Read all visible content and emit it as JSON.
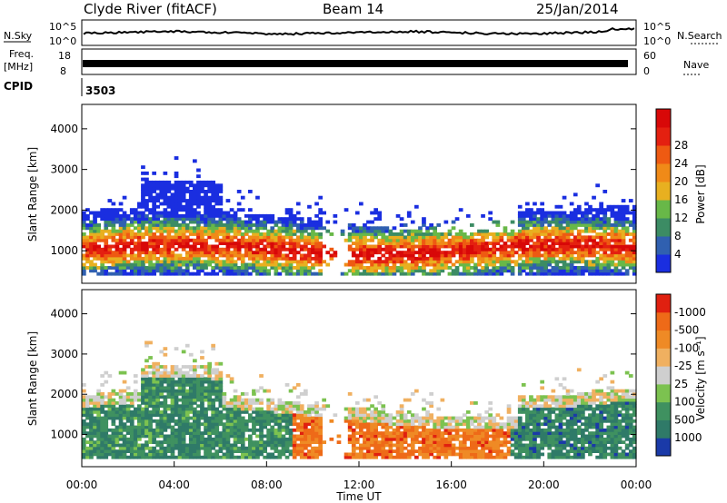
{
  "header": {
    "station": "Clyde River (fitACF)",
    "beam": "Beam 14",
    "date": "25/Jan/2014"
  },
  "strip_panels": {
    "noise": {
      "left_label": "N.Sky",
      "right_label": "N.Search",
      "left_ticks": [
        "10^5",
        "10^0"
      ],
      "right_ticks": [
        "10^5",
        "10^0"
      ]
    },
    "freq": {
      "left_label_line1": "Freq.",
      "left_label_line2": "[MHz]",
      "left_ticks": [
        "18",
        "8"
      ],
      "right_label": "Nave",
      "right_ticks": [
        "60",
        "0"
      ]
    },
    "cpid": {
      "label": "CPID",
      "value": "3503"
    }
  },
  "chart_data": [
    {
      "type": "heatmap",
      "name": "power",
      "ylabel": "Slant Range [km]",
      "yticks": [
        1000,
        2000,
        3000,
        4000
      ],
      "ylim": [
        200,
        4600
      ],
      "xlim": [
        0,
        24
      ],
      "colorbar": {
        "title": "Power [dB]",
        "labels": [
          "4",
          "8",
          "12",
          "16",
          "20",
          "24",
          "28"
        ],
        "colors": [
          "#1a2ee0",
          "#3060b0",
          "#3c8c64",
          "#68b848",
          "#e8b020",
          "#f08a18",
          "#ee5a12",
          "#e42010",
          "#d80808"
        ]
      }
    },
    {
      "type": "heatmap",
      "name": "velocity",
      "ylabel": "Slant Range [km]",
      "yticks": [
        1000,
        2000,
        3000,
        4000
      ],
      "ylim": [
        200,
        4600
      ],
      "xlim": [
        0,
        24
      ],
      "xlabel": "Time UT",
      "xticks": [
        "00:00",
        "04:00",
        "08:00",
        "12:00",
        "16:00",
        "20:00",
        "00:00"
      ],
      "colorbar": {
        "title": "Velocity [m s⁻¹]",
        "labels": [
          "1000",
          "500",
          "100",
          "25",
          "-25",
          "-100",
          "-500",
          "-1000"
        ],
        "colors": [
          "#1a3aa8",
          "#2f7a68",
          "#3f9160",
          "#7cc250",
          "#cfcfcf",
          "#f0b060",
          "#ef8a25",
          "#ee6a18",
          "#e02010"
        ]
      }
    }
  ]
}
